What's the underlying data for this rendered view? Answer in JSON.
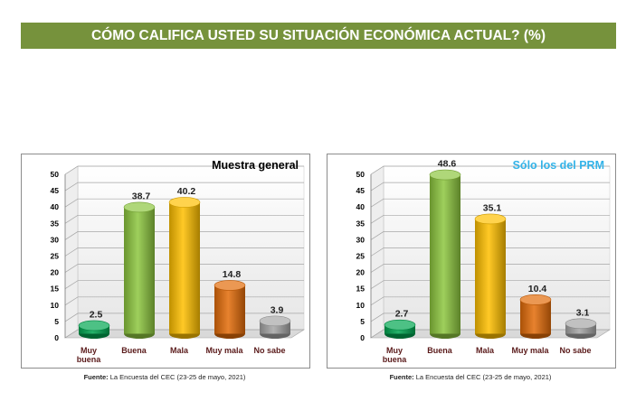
{
  "banner_title": "CÓMO CALIFICA USTED SU SITUACIÓN ECONÓMICA ACTUAL? (%)",
  "source_label": "Fuente:",
  "source_text": "La Encuesta del CEC (23-25 de mayo, 2021)",
  "chart_data": [
    {
      "type": "bar",
      "title": "Muestra general",
      "title_color": "#000000",
      "categories": [
        "Muy buena",
        "Buena",
        "Mala",
        "Muy mala",
        "No sabe"
      ],
      "values": [
        2.5,
        38.7,
        40.2,
        14.8,
        3.9
      ],
      "value_labels": [
        "2.5",
        "38.7",
        "40.2",
        "14.8",
        "3.9"
      ],
      "colors": [
        "#00a651",
        "#8dc63f",
        "#ffc000",
        "#e36c09",
        "#a6a6a6"
      ],
      "ylim": [
        0,
        50
      ],
      "yticks": [
        0,
        5,
        10,
        15,
        20,
        25,
        30,
        35,
        40,
        45,
        50
      ],
      "grid": true,
      "xlabel": "",
      "ylabel": ""
    },
    {
      "type": "bar",
      "title": "Sólo los del PRM",
      "title_color": "#33b3e8",
      "categories": [
        "Muy buena",
        "Buena",
        "Mala",
        "Muy mala",
        "No sabe"
      ],
      "values": [
        2.7,
        48.6,
        35.1,
        10.4,
        3.1
      ],
      "value_labels": [
        "2.7",
        "48.6",
        "35.1",
        "10.4",
        "3.1"
      ],
      "colors": [
        "#00a651",
        "#8dc63f",
        "#ffc000",
        "#e36c09",
        "#a6a6a6"
      ],
      "ylim": [
        0,
        50
      ],
      "yticks": [
        0,
        5,
        10,
        15,
        20,
        25,
        30,
        35,
        40,
        45,
        50
      ],
      "grid": true,
      "xlabel": "",
      "ylabel": ""
    }
  ]
}
